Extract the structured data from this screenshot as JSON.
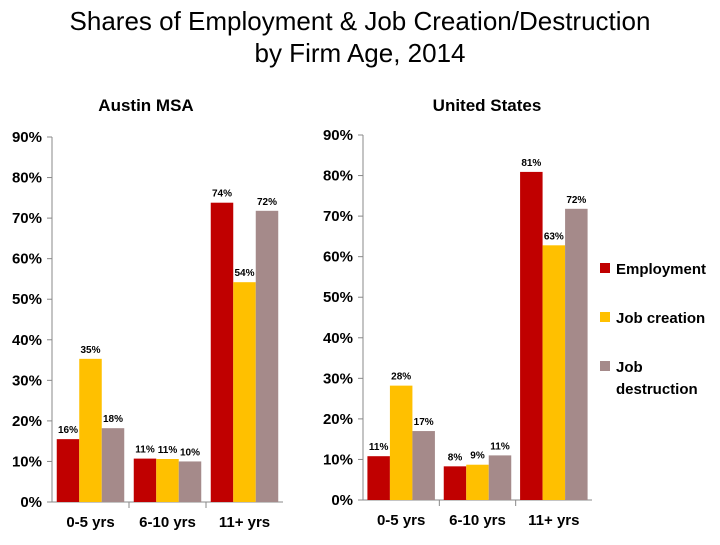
{
  "title": [
    "Shares of Employment & Job Creation/Destruction",
    "by Firm Age, 2014"
  ],
  "colors": {
    "Employment": "#c00000",
    "Job creation": "#ffc000",
    "Job destruction": "#a58a8a"
  },
  "legend": [
    {
      "series": "Employment",
      "lines": [
        "Employment"
      ]
    },
    {
      "series": "Job creation",
      "lines": [
        "Job creation"
      ]
    },
    {
      "series": "Job destruction",
      "lines": [
        "Job",
        "destruction"
      ]
    }
  ],
  "chart_data": [
    {
      "type": "bar",
      "title": "Austin MSA",
      "categories": [
        "0-5 yrs",
        "6-10 yrs",
        "11+ yrs"
      ],
      "ylim": [
        0,
        90
      ],
      "yticks": [
        "0%",
        "10%",
        "20%",
        "30%",
        "40%",
        "50%",
        "60%",
        "70%",
        "80%",
        "90%"
      ],
      "series": [
        {
          "name": "Employment",
          "values": [
            15.5,
            10.7,
            73.8
          ],
          "labels": [
            "16%",
            "11%",
            "74%"
          ]
        },
        {
          "name": "Job creation",
          "values": [
            35.3,
            10.6,
            54.2
          ],
          "labels": [
            "35%",
            "11%",
            "54%"
          ]
        },
        {
          "name": "Job destruction",
          "values": [
            18.2,
            10.0,
            71.8
          ],
          "labels": [
            "18%",
            "10%",
            "72%"
          ]
        }
      ]
    },
    {
      "type": "bar",
      "title": "United States",
      "categories": [
        "0-5 yrs",
        "6-10 yrs",
        "11+ yrs"
      ],
      "ylim": [
        0,
        90
      ],
      "yticks": [
        "0%",
        "10%",
        "20%",
        "30%",
        "40%",
        "50%",
        "60%",
        "70%",
        "80%",
        "90%"
      ],
      "series": [
        {
          "name": "Employment",
          "values": [
            10.8,
            8.3,
            80.9
          ],
          "labels": [
            "11%",
            "8%",
            "81%"
          ]
        },
        {
          "name": "Job creation",
          "values": [
            28.2,
            8.7,
            62.8
          ],
          "labels": [
            "28%",
            "9%",
            "63%"
          ]
        },
        {
          "name": "Job destruction",
          "values": [
            17.0,
            11.0,
            71.8
          ],
          "labels": [
            "17%",
            "11%",
            "72%"
          ]
        }
      ]
    }
  ]
}
